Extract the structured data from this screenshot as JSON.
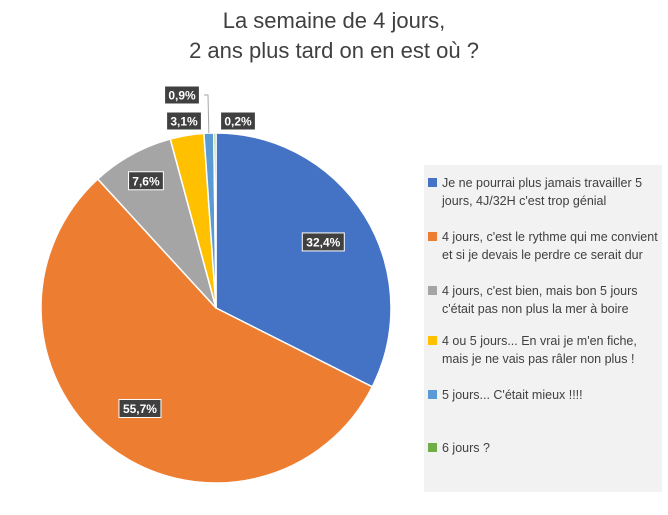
{
  "chart_data": {
    "type": "pie",
    "title": [
      "La semaine de 4 jours,",
      "2 ans plus tard on en est où  ?"
    ],
    "slices": [
      {
        "label": "Je ne pourrai plus jamais travailler 5 jours, 4J/32H c'est trop génial",
        "value": 32.4,
        "value_label": "32,4%",
        "color": "#4472c4"
      },
      {
        "label": "4 jours, c'est le rythme qui me convient et si je devais le perdre ce serait dur",
        "value": 55.7,
        "value_label": "55,7%",
        "color": "#ed7d31"
      },
      {
        "label": "4 jours, c'est bien, mais bon 5 jours c'était pas non plus la mer à boire",
        "value": 7.6,
        "value_label": "7,6%",
        "color": "#a5a5a5"
      },
      {
        "label": "4 ou 5 jours... En vrai je m'en fiche, mais je ne vais pas râler non plus !",
        "value": 3.1,
        "value_label": "3,1%",
        "color": "#ffc000"
      },
      {
        "label": "5 jours... C'était mieux !!!!",
        "value": 0.9,
        "value_label": "0,9%",
        "color": "#5b9bd5"
      },
      {
        "label": "6 jours ?",
        "value": 0.2,
        "value_label": "0,2%",
        "color": "#70ad47"
      }
    ],
    "legend_position": "right",
    "start_angle": "top, clockwise"
  }
}
